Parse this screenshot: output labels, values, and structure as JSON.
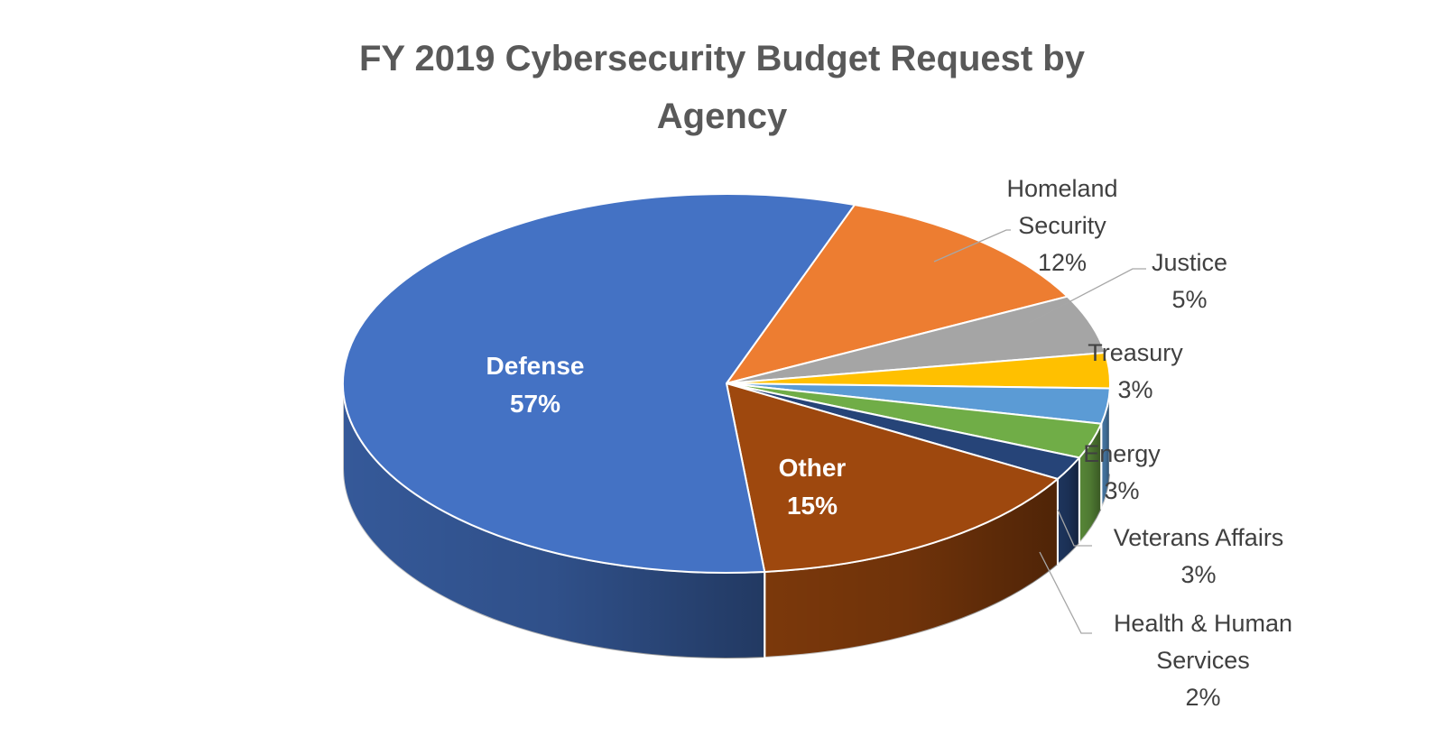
{
  "chart_data": {
    "type": "pie",
    "title": [
      "FY 2019 Cybersecurity Budget Request by",
      "Agency"
    ],
    "slices": [
      {
        "name": "Homeland Security",
        "label_lines": [
          "Homeland",
          "Security"
        ],
        "percent_label": "12%",
        "value": 12,
        "color": "#ED7D31",
        "label_inside": false
      },
      {
        "name": "Justice",
        "label_lines": [
          "Justice"
        ],
        "percent_label": "5%",
        "value": 5,
        "color": "#A5A5A5",
        "label_inside": false
      },
      {
        "name": "Treasury",
        "label_lines": [
          "Treasury"
        ],
        "percent_label": "3%",
        "value": 3,
        "color": "#FFC000",
        "label_inside": false
      },
      {
        "name": "Energy",
        "label_lines": [
          "Energy"
        ],
        "percent_label": "3%",
        "value": 3,
        "color": "#5B9BD5",
        "label_inside": false
      },
      {
        "name": "Veterans Affairs",
        "label_lines": [
          "Veterans Affairs"
        ],
        "percent_label": "3%",
        "value": 3,
        "color": "#70AD47",
        "label_inside": false
      },
      {
        "name": "Health & Human Services",
        "label_lines": [
          "Health & Human",
          "Services"
        ],
        "percent_label": "2%",
        "value": 2,
        "color": "#264478",
        "label_inside": false
      },
      {
        "name": "Other",
        "label_lines": [
          "Other"
        ],
        "percent_label": "15%",
        "value": 15,
        "color": "#9E480E",
        "label_inside": true
      },
      {
        "name": "Defense",
        "label_lines": [
          "Defense"
        ],
        "percent_label": "57%",
        "value": 57,
        "color": "#4472C4",
        "label_inside": true
      }
    ],
    "style": "3d-pie",
    "legend": "none"
  }
}
